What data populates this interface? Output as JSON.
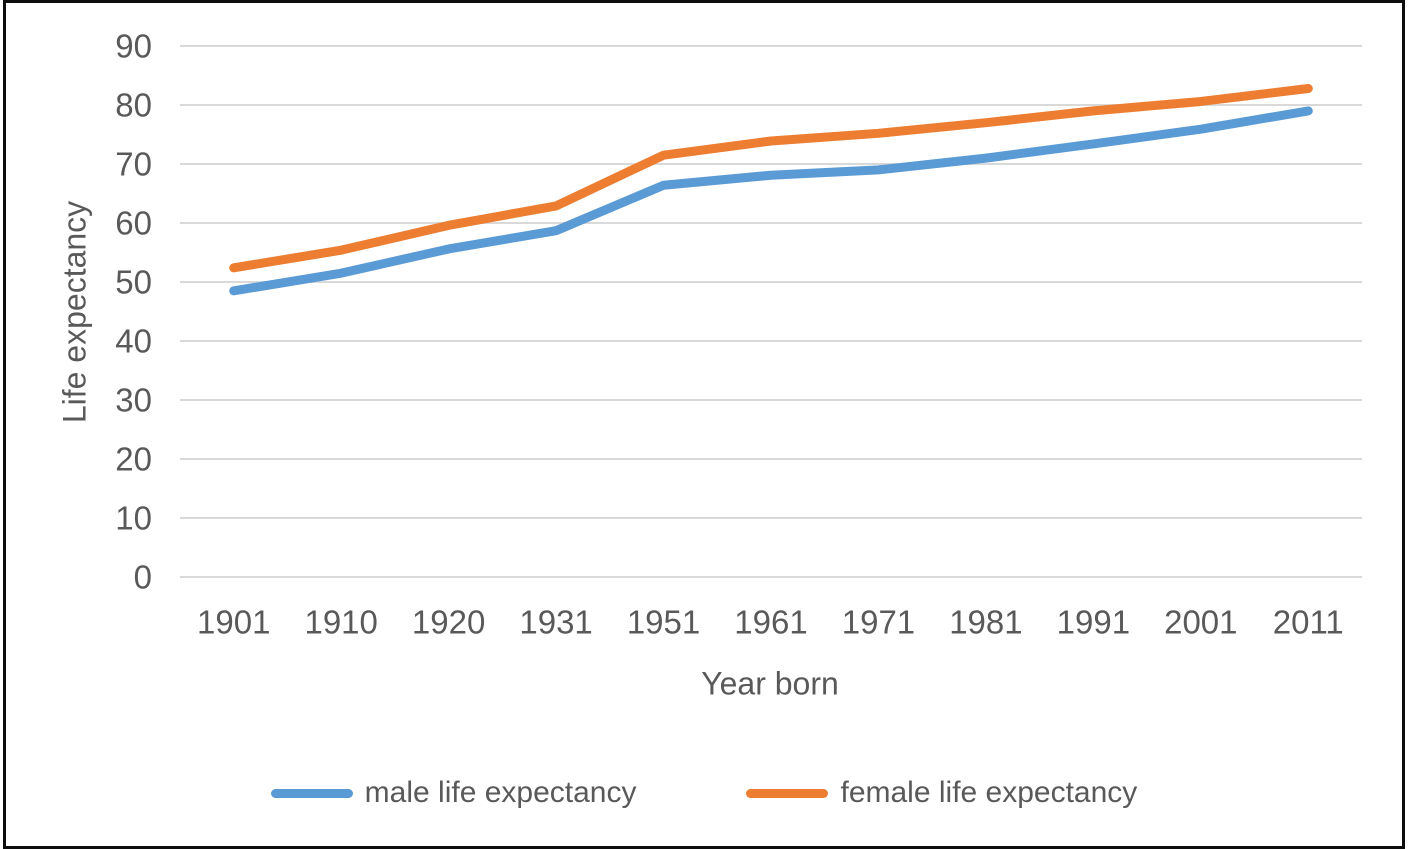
{
  "figure": {
    "y_axis_title": "Life expectancy",
    "x_axis_title": "Year born"
  },
  "chart_data": {
    "type": "line",
    "title": "",
    "xlabel": "Year born",
    "ylabel": "Life expectancy",
    "categories": [
      "1901",
      "1910",
      "1920",
      "1931",
      "1951",
      "1961",
      "1971",
      "1981",
      "1991",
      "2001",
      "2011"
    ],
    "series": [
      {
        "name": "male life expectancy",
        "color": "#5B9BD5",
        "values": [
          48.5,
          51.5,
          55.6,
          58.7,
          66.4,
          68.1,
          69.0,
          71.0,
          73.4,
          75.9,
          79.0
        ]
      },
      {
        "name": "female life expectancy",
        "color": "#ED7D31",
        "values": [
          52.4,
          55.4,
          59.6,
          62.9,
          71.5,
          73.9,
          75.2,
          77.0,
          79.0,
          80.6,
          82.8
        ]
      }
    ],
    "ylim": [
      0,
      90
    ],
    "y_ticks": [
      0,
      10,
      20,
      30,
      40,
      50,
      60,
      70,
      80,
      90
    ],
    "grid": true,
    "legend_position": "bottom",
    "styles": {
      "gridline_color": "#D9D9D9",
      "text_color": "#595959",
      "line_width": 9,
      "tick_font_size": 33,
      "background": "#ffffff"
    }
  }
}
